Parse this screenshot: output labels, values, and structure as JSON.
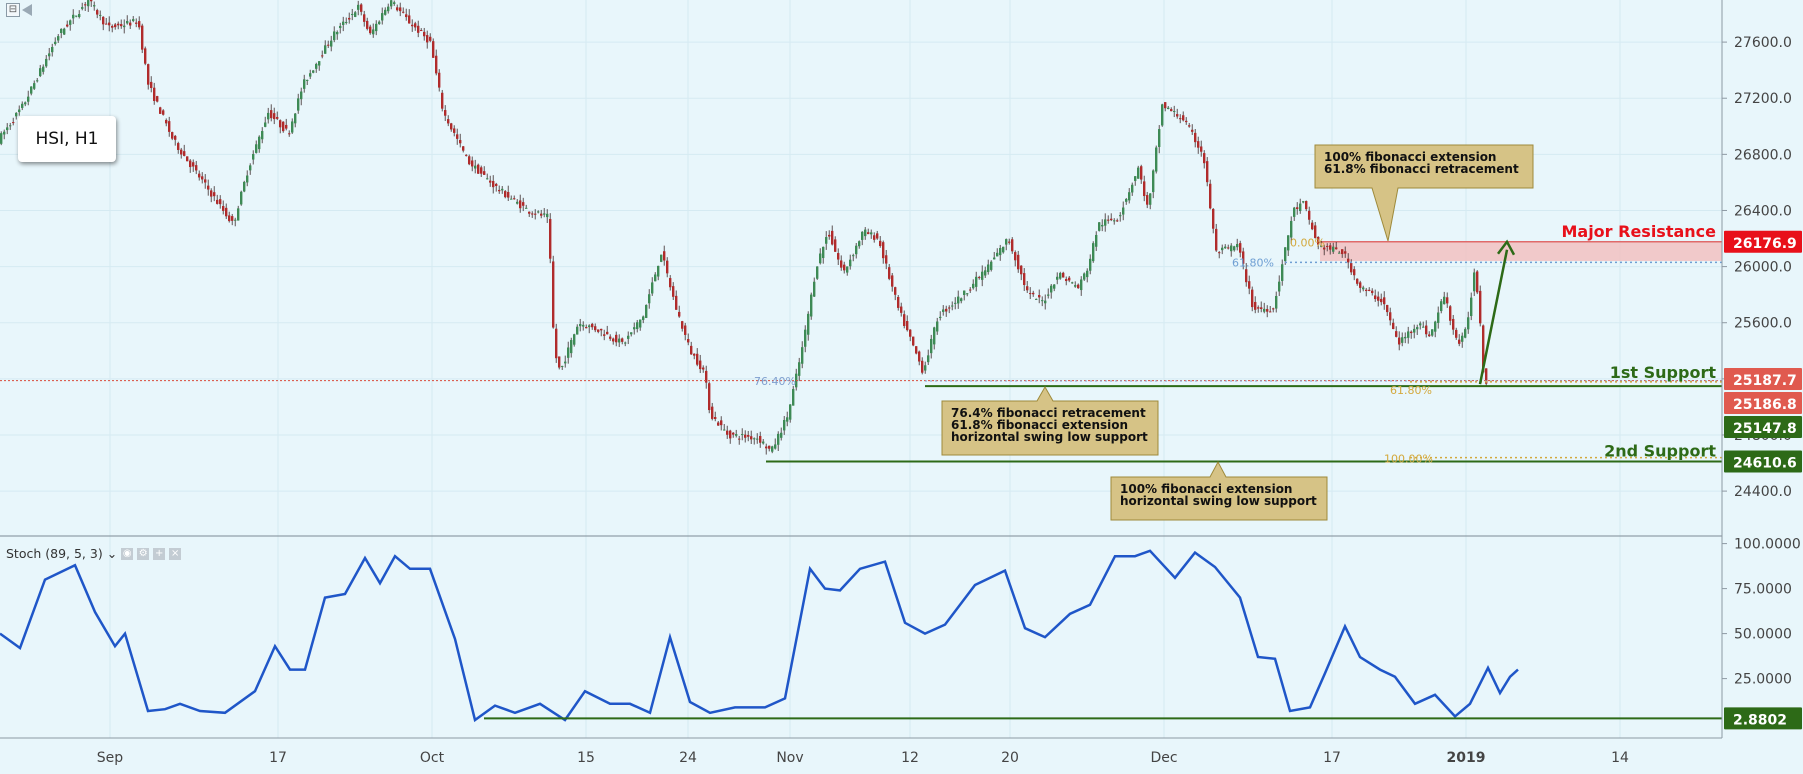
{
  "symbol_label": "HSI, H1",
  "indicator": {
    "label": "Stoch (89, 5, 3)",
    "chevron": "⌄"
  },
  "colors": {
    "background": "#e8f6fb",
    "bull": "#3d8a55",
    "bear": "#b02b2b",
    "stoch_line": "#1f56c8",
    "support_line": "#2d6a17",
    "resistance_zone": "#f4b9b9",
    "resistance_label": "#e8101a",
    "current_price_tag": "#e05a4f",
    "callout_fill": "#d6c386",
    "callout_border": "#9e8a3b",
    "fib_gold": "#d3a93d",
    "fib_blue": "#6f9fd3",
    "axis_text": "#444444"
  },
  "annotations": {
    "major_resistance": "Major Resistance",
    "first_support": "1st Support",
    "second_support": "2nd Support",
    "callout_resistance": [
      "100% fibonacci extension",
      "61.8% fibonacci retracement"
    ],
    "callout_first_support": [
      "76.4% fibonacci retracement",
      "61.8% fibonacci extension",
      "horizontal swing low support"
    ],
    "callout_second_support": [
      "100% fibonacci extension",
      "horizontal swing low support"
    ],
    "fib_labels": {
      "f764": "76.40%",
      "f618_blue": "61.80%",
      "f0": "0.00%",
      "f618_gold": "61.80%",
      "f100": "100.00%"
    }
  },
  "price_tags": {
    "resistance": "26176.9",
    "last_price": "25187.7",
    "first_support_level": "25186.8",
    "first_support_low": "25147.8",
    "second_support": "24610.6",
    "stoch_level": "2.8802"
  },
  "chart_data": {
    "type": "candlestick",
    "title": "HSI, H1",
    "price_axis": {
      "ticks": [
        27600,
        27200,
        26800,
        26400,
        26000,
        25600,
        25200,
        24800,
        24400
      ],
      "tick_labels": [
        "27600.0",
        "27200.0",
        "26800.0",
        "26400.0",
        "26000.0",
        "25600.0",
        "25200.0",
        "24800.0",
        "24400.0"
      ],
      "range": [
        24080,
        27900
      ]
    },
    "time_axis": {
      "labels": [
        "Sep",
        "17",
        "Oct",
        "15",
        "24",
        "Nov",
        "12",
        "20",
        "Dec",
        "17",
        "2019",
        "14"
      ],
      "label_x_index": [
        110,
        278,
        432,
        586,
        688,
        790,
        910,
        1010,
        1164,
        1332,
        1466,
        1620
      ]
    },
    "price_path": [
      {
        "x": 0,
        "y": 26900
      },
      {
        "x": 25,
        "y": 27150
      },
      {
        "x": 60,
        "y": 27650
      },
      {
        "x": 90,
        "y": 27900
      },
      {
        "x": 110,
        "y": 27700
      },
      {
        "x": 140,
        "y": 27750
      },
      {
        "x": 150,
        "y": 27300
      },
      {
        "x": 175,
        "y": 26900
      },
      {
        "x": 200,
        "y": 26650
      },
      {
        "x": 235,
        "y": 26300
      },
      {
        "x": 250,
        "y": 26700
      },
      {
        "x": 270,
        "y": 27100
      },
      {
        "x": 290,
        "y": 26950
      },
      {
        "x": 305,
        "y": 27300
      },
      {
        "x": 335,
        "y": 27650
      },
      {
        "x": 360,
        "y": 27850
      },
      {
        "x": 372,
        "y": 27650
      },
      {
        "x": 392,
        "y": 27900
      },
      {
        "x": 410,
        "y": 27750
      },
      {
        "x": 432,
        "y": 27600
      },
      {
        "x": 445,
        "y": 27100
      },
      {
        "x": 470,
        "y": 26750
      },
      {
        "x": 500,
        "y": 26550
      },
      {
        "x": 530,
        "y": 26400
      },
      {
        "x": 550,
        "y": 26350
      },
      {
        "x": 556,
        "y": 25400
      },
      {
        "x": 562,
        "y": 25250
      },
      {
        "x": 580,
        "y": 25600
      },
      {
        "x": 600,
        "y": 25550
      },
      {
        "x": 625,
        "y": 25450
      },
      {
        "x": 645,
        "y": 25650
      },
      {
        "x": 663,
        "y": 26100
      },
      {
        "x": 678,
        "y": 25700
      },
      {
        "x": 692,
        "y": 25400
      },
      {
        "x": 706,
        "y": 25250
      },
      {
        "x": 712,
        "y": 24950
      },
      {
        "x": 730,
        "y": 24800
      },
      {
        "x": 760,
        "y": 24780
      },
      {
        "x": 773,
        "y": 24680
      },
      {
        "x": 790,
        "y": 24950
      },
      {
        "x": 805,
        "y": 25450
      },
      {
        "x": 818,
        "y": 26000
      },
      {
        "x": 830,
        "y": 26250
      },
      {
        "x": 845,
        "y": 25950
      },
      {
        "x": 865,
        "y": 26250
      },
      {
        "x": 880,
        "y": 26200
      },
      {
        "x": 900,
        "y": 25700
      },
      {
        "x": 925,
        "y": 25250
      },
      {
        "x": 940,
        "y": 25650
      },
      {
        "x": 965,
        "y": 25800
      },
      {
        "x": 990,
        "y": 26000
      },
      {
        "x": 1010,
        "y": 26200
      },
      {
        "x": 1030,
        "y": 25800
      },
      {
        "x": 1045,
        "y": 25750
      },
      {
        "x": 1060,
        "y": 25950
      },
      {
        "x": 1080,
        "y": 25850
      },
      {
        "x": 1090,
        "y": 26000
      },
      {
        "x": 1100,
        "y": 26300
      },
      {
        "x": 1120,
        "y": 26350
      },
      {
        "x": 1140,
        "y": 26700
      },
      {
        "x": 1150,
        "y": 26400
      },
      {
        "x": 1164,
        "y": 27150
      },
      {
        "x": 1185,
        "y": 27050
      },
      {
        "x": 1205,
        "y": 26800
      },
      {
        "x": 1218,
        "y": 26100
      },
      {
        "x": 1240,
        "y": 26150
      },
      {
        "x": 1255,
        "y": 25700
      },
      {
        "x": 1275,
        "y": 25700
      },
      {
        "x": 1295,
        "y": 26400
      },
      {
        "x": 1305,
        "y": 26450
      },
      {
        "x": 1320,
        "y": 26150
      },
      {
        "x": 1345,
        "y": 26100
      },
      {
        "x": 1362,
        "y": 25850
      },
      {
        "x": 1385,
        "y": 25750
      },
      {
        "x": 1400,
        "y": 25450
      },
      {
        "x": 1420,
        "y": 25600
      },
      {
        "x": 1432,
        "y": 25500
      },
      {
        "x": 1446,
        "y": 25800
      },
      {
        "x": 1457,
        "y": 25500
      },
      {
        "x": 1462,
        "y": 25450
      },
      {
        "x": 1468,
        "y": 25550
      },
      {
        "x": 1476,
        "y": 25950
      },
      {
        "x": 1480,
        "y": 25800
      },
      {
        "x": 1482,
        "y": 25600
      },
      {
        "x": 1484,
        "y": 25300
      },
      {
        "x": 1487,
        "y": 25188
      }
    ],
    "levels": {
      "major_resistance": 26176.9,
      "resistance_zone": [
        26040,
        26176.9
      ],
      "first_support": 25147.8,
      "second_support": 24610.6,
      "current_price": 25187.7,
      "fib_764": 25185,
      "fib_618_blue": 26030,
      "fib_0": 26170,
      "fib_618_gold": 25150,
      "fib_100": 24610
    },
    "stochastic": {
      "name": "Stoch (89, 5, 3)",
      "ticks": [
        100,
        75,
        50,
        25
      ],
      "tick_labels": [
        "100.0000",
        "75.0000",
        "50.0000",
        "25.0000"
      ],
      "range": [
        -8,
        102
      ],
      "support_level": 2.8802,
      "path": [
        {
          "x": 0,
          "y": 50
        },
        {
          "x": 20,
          "y": 42
        },
        {
          "x": 45,
          "y": 80
        },
        {
          "x": 75,
          "y": 88
        },
        {
          "x": 95,
          "y": 62
        },
        {
          "x": 115,
          "y": 43
        },
        {
          "x": 125,
          "y": 50
        },
        {
          "x": 148,
          "y": 7
        },
        {
          "x": 165,
          "y": 8
        },
        {
          "x": 180,
          "y": 11
        },
        {
          "x": 200,
          "y": 7
        },
        {
          "x": 225,
          "y": 6
        },
        {
          "x": 255,
          "y": 18
        },
        {
          "x": 275,
          "y": 43
        },
        {
          "x": 290,
          "y": 30
        },
        {
          "x": 305,
          "y": 30
        },
        {
          "x": 325,
          "y": 70
        },
        {
          "x": 345,
          "y": 72
        },
        {
          "x": 365,
          "y": 92
        },
        {
          "x": 380,
          "y": 78
        },
        {
          "x": 395,
          "y": 93
        },
        {
          "x": 410,
          "y": 86
        },
        {
          "x": 430,
          "y": 86
        },
        {
          "x": 455,
          "y": 47
        },
        {
          "x": 475,
          "y": 2
        },
        {
          "x": 495,
          "y": 10
        },
        {
          "x": 515,
          "y": 6
        },
        {
          "x": 540,
          "y": 11
        },
        {
          "x": 565,
          "y": 2
        },
        {
          "x": 585,
          "y": 18
        },
        {
          "x": 610,
          "y": 11
        },
        {
          "x": 630,
          "y": 11
        },
        {
          "x": 650,
          "y": 6
        },
        {
          "x": 670,
          "y": 48
        },
        {
          "x": 690,
          "y": 12
        },
        {
          "x": 710,
          "y": 6
        },
        {
          "x": 735,
          "y": 9
        },
        {
          "x": 765,
          "y": 9
        },
        {
          "x": 785,
          "y": 14
        },
        {
          "x": 810,
          "y": 86
        },
        {
          "x": 825,
          "y": 75
        },
        {
          "x": 840,
          "y": 74
        },
        {
          "x": 860,
          "y": 86
        },
        {
          "x": 885,
          "y": 90
        },
        {
          "x": 905,
          "y": 56
        },
        {
          "x": 925,
          "y": 50
        },
        {
          "x": 945,
          "y": 55
        },
        {
          "x": 975,
          "y": 77
        },
        {
          "x": 1005,
          "y": 85
        },
        {
          "x": 1025,
          "y": 53
        },
        {
          "x": 1045,
          "y": 48
        },
        {
          "x": 1070,
          "y": 61
        },
        {
          "x": 1090,
          "y": 66
        },
        {
          "x": 1115,
          "y": 93
        },
        {
          "x": 1135,
          "y": 93
        },
        {
          "x": 1150,
          "y": 96
        },
        {
          "x": 1175,
          "y": 81
        },
        {
          "x": 1195,
          "y": 95
        },
        {
          "x": 1215,
          "y": 87
        },
        {
          "x": 1240,
          "y": 70
        },
        {
          "x": 1258,
          "y": 37
        },
        {
          "x": 1275,
          "y": 36
        },
        {
          "x": 1290,
          "y": 7
        },
        {
          "x": 1310,
          "y": 9
        },
        {
          "x": 1325,
          "y": 28
        },
        {
          "x": 1345,
          "y": 54
        },
        {
          "x": 1360,
          "y": 37
        },
        {
          "x": 1380,
          "y": 30
        },
        {
          "x": 1395,
          "y": 26
        },
        {
          "x": 1415,
          "y": 11
        },
        {
          "x": 1435,
          "y": 16
        },
        {
          "x": 1455,
          "y": 4
        },
        {
          "x": 1470,
          "y": 11
        },
        {
          "x": 1488,
          "y": 31
        },
        {
          "x": 1500,
          "y": 17
        },
        {
          "x": 1510,
          "y": 26
        },
        {
          "x": 1518,
          "y": 30
        }
      ]
    }
  }
}
